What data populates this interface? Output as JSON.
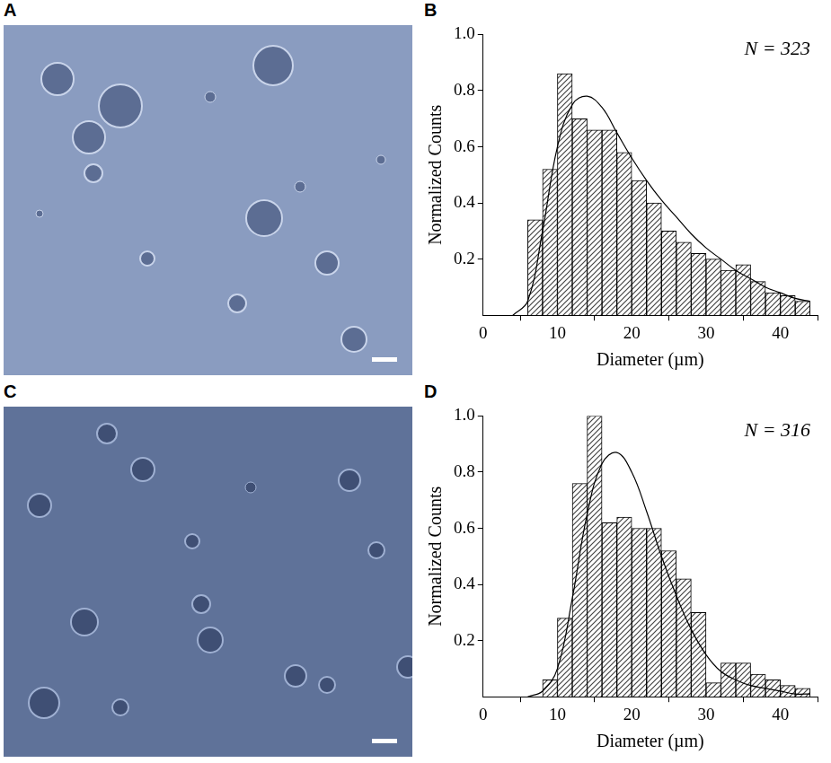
{
  "images": [
    {
      "panel": "A"
    },
    {
      "panel": "C"
    }
  ],
  "chart_data": [
    {
      "type": "histogram",
      "panel": "B",
      "annotation": "N = 323",
      "x_label": "Diameter (µm)",
      "y_label": "Normalized Counts",
      "bins": [
        6,
        8,
        10,
        12,
        14,
        16,
        18,
        20,
        22,
        24,
        26,
        28,
        30,
        32,
        34,
        36,
        38,
        40,
        42,
        44
      ],
      "values": [
        0.34,
        0.52,
        0.86,
        0.7,
        0.66,
        0.66,
        0.58,
        0.48,
        0.4,
        0.3,
        0.26,
        0.22,
        0.2,
        0.16,
        0.18,
        0.12,
        0.08,
        0.07,
        0.05
      ],
      "color": "#444444",
      "fit": {
        "x": [
          4,
          6,
          8,
          10,
          12,
          14,
          16,
          18,
          20,
          22,
          24,
          26,
          28,
          30,
          32,
          34,
          36,
          38,
          40,
          42,
          44
        ],
        "values": [
          0.0,
          0.05,
          0.3,
          0.6,
          0.75,
          0.78,
          0.74,
          0.65,
          0.56,
          0.48,
          0.41,
          0.35,
          0.29,
          0.24,
          0.2,
          0.16,
          0.13,
          0.1,
          0.08,
          0.06,
          0.05
        ],
        "color": "#000000"
      },
      "xlim": [
        0,
        45
      ],
      "xticks": [
        0,
        10,
        20,
        30,
        40
      ],
      "ylim": [
        0,
        1
      ],
      "yticks": [
        0.2,
        0.4,
        0.6,
        0.8,
        {
          "value": 1,
          "label": "1.0"
        }
      ],
      "grid": false
    },
    {
      "type": "histogram",
      "panel": "D",
      "annotation": "N = 316",
      "x_label": "Diameter (µm)",
      "y_label": "Normalized Counts",
      "bins": [
        8,
        10,
        12,
        14,
        16,
        18,
        20,
        22,
        24,
        26,
        28,
        30,
        32,
        34,
        36,
        38,
        40,
        42,
        44
      ],
      "values": [
        0.06,
        0.28,
        0.76,
        1.0,
        0.62,
        0.64,
        0.6,
        0.6,
        0.52,
        0.42,
        0.3,
        0.05,
        0.12,
        0.12,
        0.08,
        0.06,
        0.04,
        0.03
      ],
      "color": "#444444",
      "fit": {
        "x": [
          6,
          8,
          10,
          12,
          14,
          16,
          18,
          20,
          22,
          24,
          26,
          28,
          30,
          32,
          34,
          36,
          38,
          40,
          42,
          44
        ],
        "values": [
          0.0,
          0.02,
          0.1,
          0.35,
          0.65,
          0.83,
          0.87,
          0.8,
          0.66,
          0.5,
          0.36,
          0.24,
          0.15,
          0.09,
          0.06,
          0.04,
          0.03,
          0.02,
          0.01,
          0.01
        ],
        "color": "#000000"
      },
      "xlim": [
        0,
        45
      ],
      "xticks": [
        0,
        10,
        20,
        30,
        40
      ],
      "ylim": [
        0,
        1
      ],
      "yticks": [
        0.2,
        0.4,
        0.6,
        0.8,
        {
          "value": 1,
          "label": "1.0"
        }
      ],
      "grid": false
    }
  ]
}
